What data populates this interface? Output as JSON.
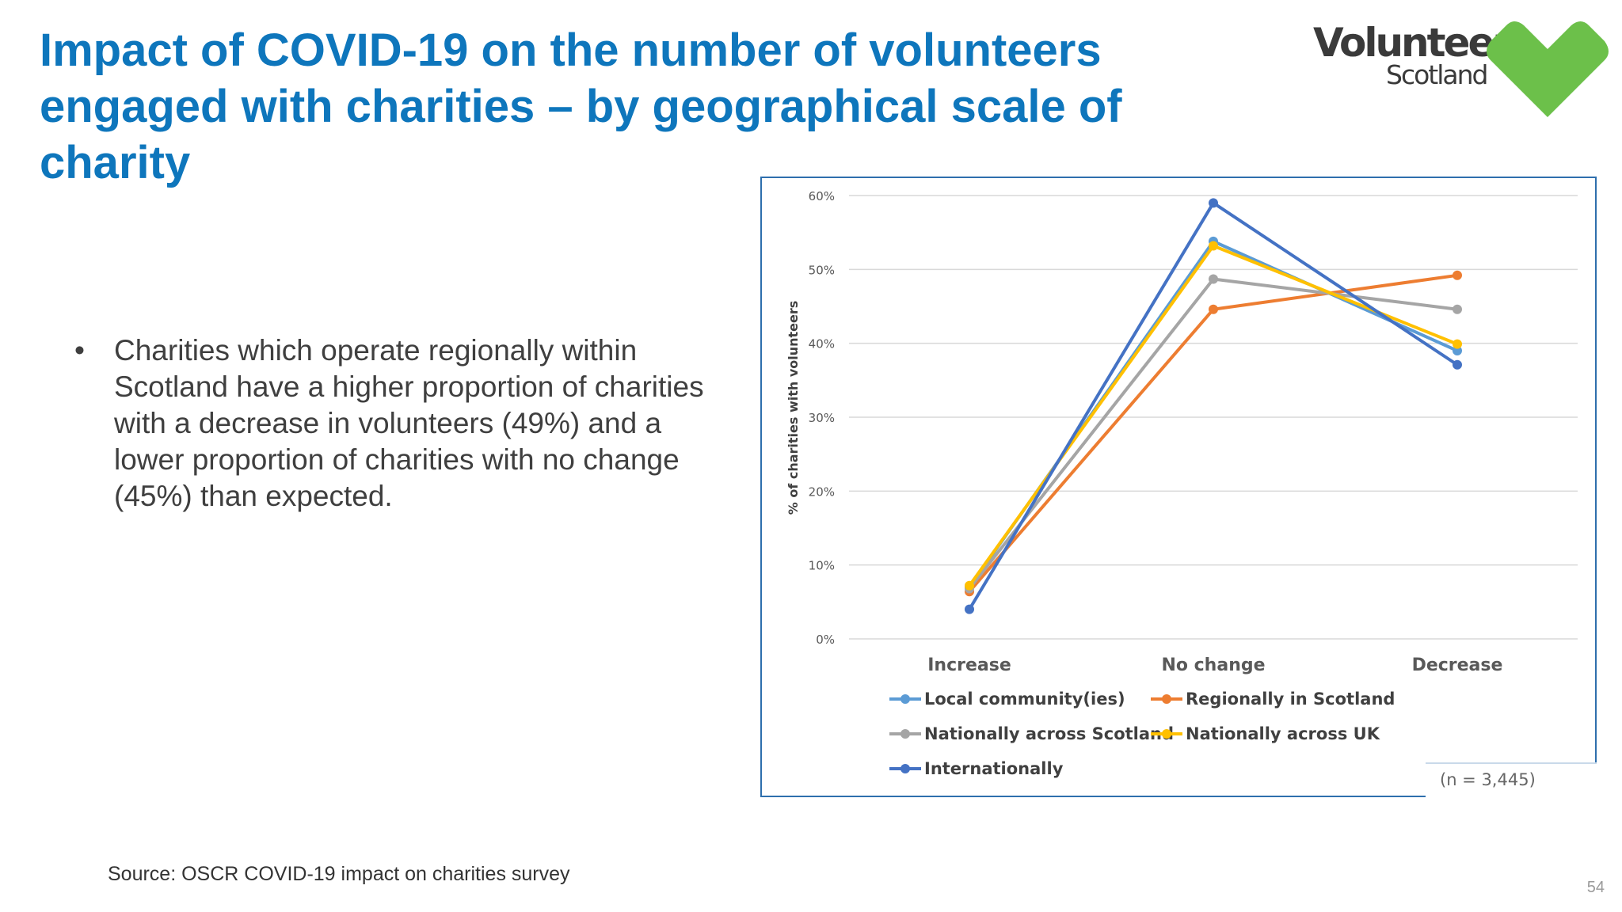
{
  "slide": {
    "title": "Impact of COVID-19 on the number of volunteers engaged with charities – by geographical scale of charity",
    "bullet_text": "Charities which operate regionally within Scotland have a higher proportion of charities with a decrease in volunteers (49%) and a lower proportion of charities with no change (45%) than expected.",
    "source": "Source: OSCR COVID-19 impact on charities survey",
    "page_number": "54",
    "note": "(n = 3,445)"
  },
  "logo": {
    "word": "Volunteer",
    "sub": "Scotland",
    "heart_color": "#6cc04a",
    "icon": "heart-icon"
  },
  "chart_data": {
    "type": "line",
    "title": "",
    "xlabel": "",
    "ylabel": "% of charities with volunteers",
    "categories": [
      "Increase",
      "No change",
      "Decrease"
    ],
    "ylim": [
      0,
      0.6
    ],
    "yticks": [
      0,
      0.1,
      0.2,
      0.3,
      0.4,
      0.5,
      0.6
    ],
    "ytick_labels": [
      "0%",
      "10%",
      "20%",
      "30%",
      "40%",
      "50%",
      "60%"
    ],
    "grid": true,
    "legend_position": "bottom",
    "series": [
      {
        "name": "Local community(ies)",
        "color": "#5b9bd5",
        "values": [
          0.07,
          0.538,
          0.39
        ]
      },
      {
        "name": "Regionally in Scotland",
        "color": "#ed7d31",
        "values": [
          0.064,
          0.446,
          0.492
        ]
      },
      {
        "name": "Nationally across Scotland",
        "color": "#a5a5a5",
        "values": [
          0.068,
          0.487,
          0.446
        ]
      },
      {
        "name": "Nationally across UK",
        "color": "#ffc000",
        "values": [
          0.072,
          0.532,
          0.399
        ]
      },
      {
        "name": "Internationally",
        "color": "#4472c4",
        "values": [
          0.04,
          0.59,
          0.371
        ]
      }
    ]
  }
}
